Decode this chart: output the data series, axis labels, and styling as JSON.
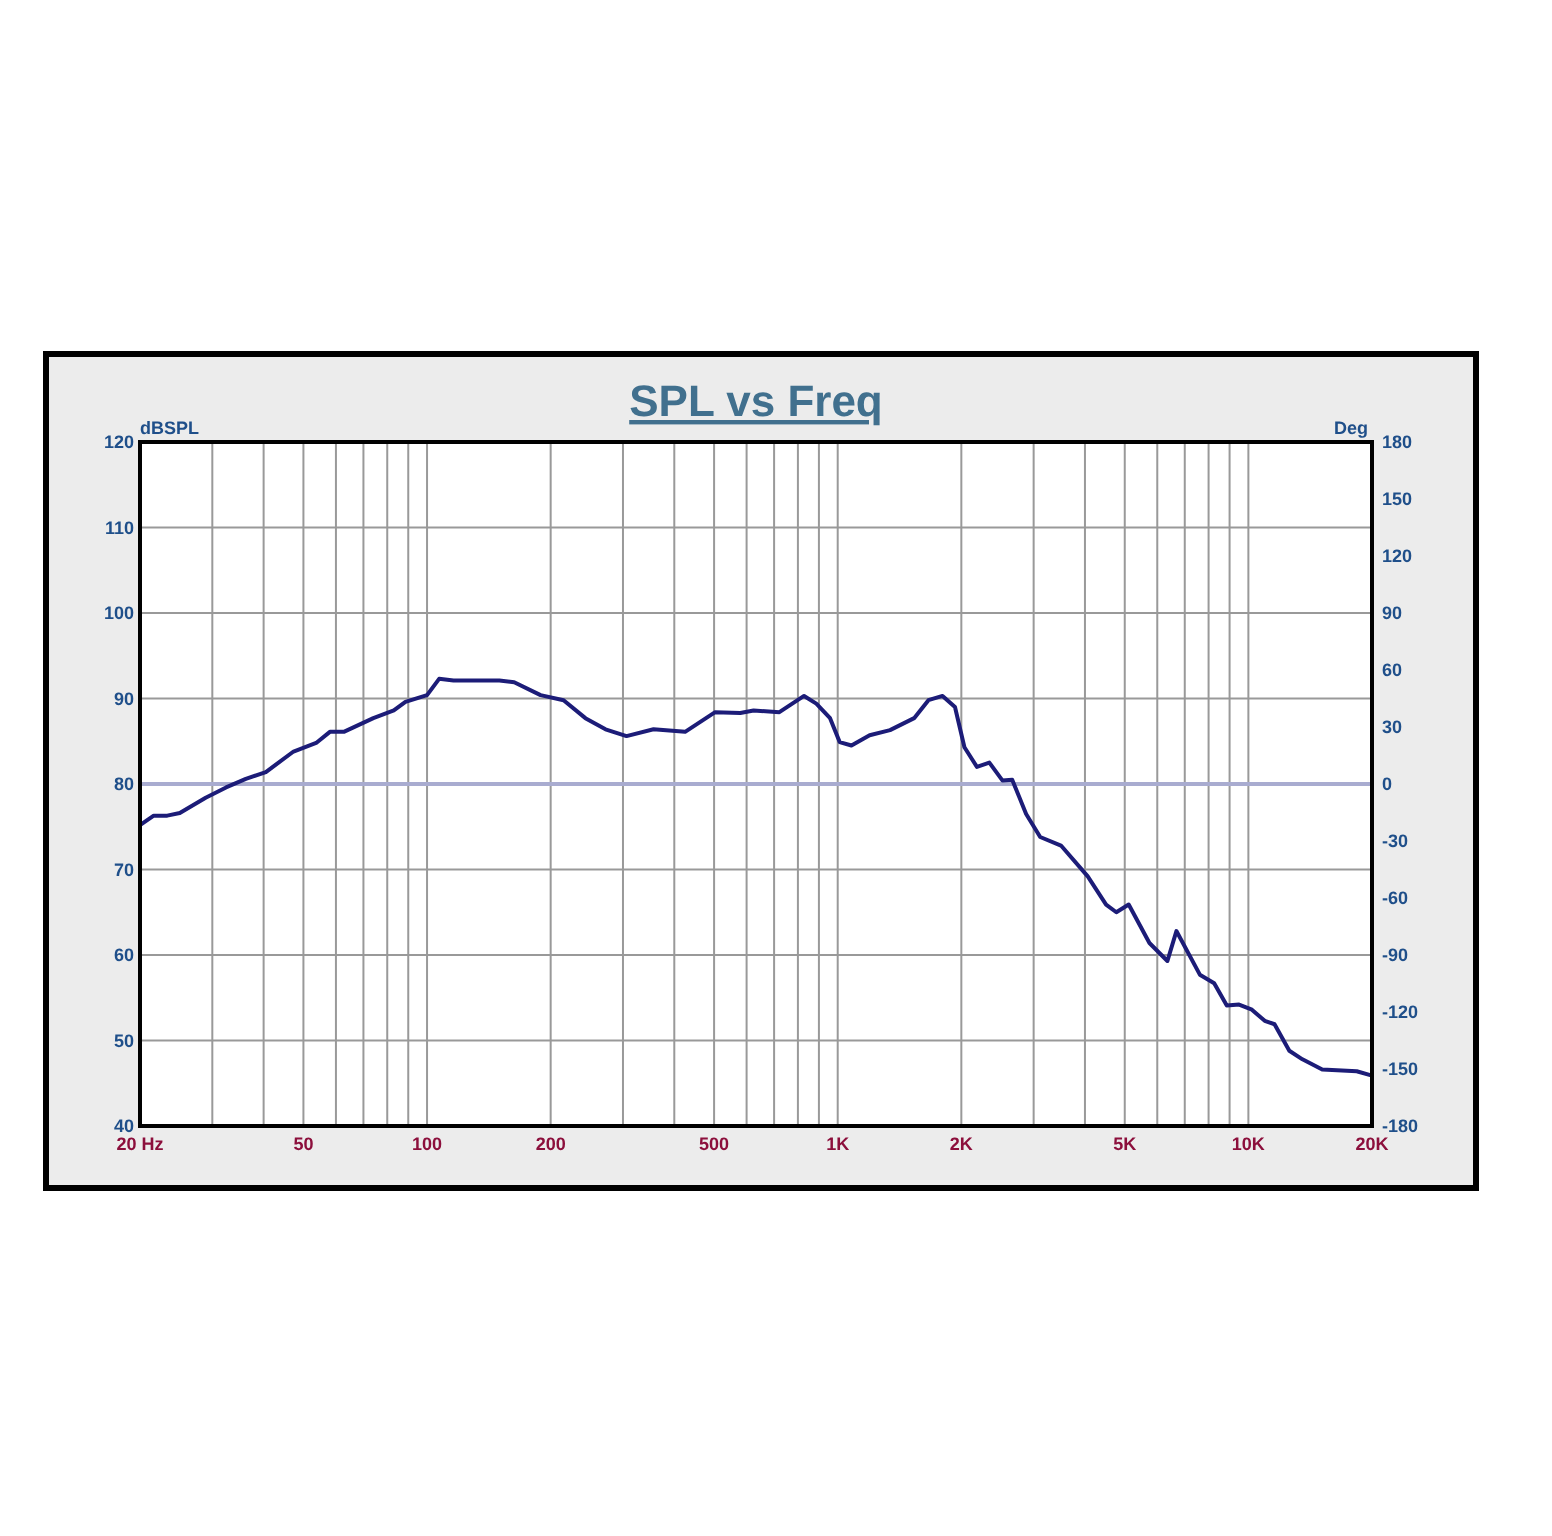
{
  "chart_data": {
    "type": "line",
    "title": "SPL vs Freq",
    "ylabel": "dBSPL",
    "y2label": "Deg",
    "log": "x",
    "grid": true,
    "marker": "none",
    "line_style": "solid",
    "xlim": [
      20,
      20000
    ],
    "xticks": [
      {
        "value": 20,
        "label": "20  Hz"
      },
      {
        "value": 30,
        "label": null
      },
      {
        "value": 40,
        "label": null
      },
      {
        "value": 50,
        "label": "50"
      },
      {
        "value": 60,
        "label": null
      },
      {
        "value": 70,
        "label": null
      },
      {
        "value": 80,
        "label": null
      },
      {
        "value": 90,
        "label": null
      },
      {
        "value": 100,
        "label": "100"
      },
      {
        "value": 200,
        "label": "200"
      },
      {
        "value": 300,
        "label": null
      },
      {
        "value": 400,
        "label": null
      },
      {
        "value": 500,
        "label": "500"
      },
      {
        "value": 600,
        "label": null
      },
      {
        "value": 700,
        "label": null
      },
      {
        "value": 800,
        "label": null
      },
      {
        "value": 900,
        "label": null
      },
      {
        "value": 1000,
        "label": "1K"
      },
      {
        "value": 2000,
        "label": "2K"
      },
      {
        "value": 3000,
        "label": null
      },
      {
        "value": 4000,
        "label": null
      },
      {
        "value": 5000,
        "label": "5K"
      },
      {
        "value": 6000,
        "label": null
      },
      {
        "value": 7000,
        "label": null
      },
      {
        "value": 8000,
        "label": null
      },
      {
        "value": 9000,
        "label": null
      },
      {
        "value": 10000,
        "label": "10K"
      },
      {
        "value": 20000,
        "label": "20K"
      }
    ],
    "ylim": [
      40,
      120
    ],
    "yticks": [
      40,
      50,
      60,
      70,
      80,
      90,
      100,
      110,
      120
    ],
    "y2lim": [
      -180,
      180
    ],
    "y2ticks": [
      -180,
      -150,
      -120,
      -90,
      -60,
      -30,
      0,
      30,
      60,
      90,
      120,
      150,
      180
    ],
    "ref_lines": [
      {
        "axis": "y2",
        "value": 0,
        "color": "#a9acd0"
      }
    ],
    "series": [
      {
        "color": "#1c1c78",
        "x": [
          20,
          21.6,
          23.3,
          25,
          28.9,
          32.4,
          36.2,
          40.5,
          47.3,
          53.7,
          58,
          62.7,
          74,
          83,
          88.6,
          100,
          107,
          116,
          150,
          163,
          189,
          215,
          243,
          272,
          306,
          356,
          425,
          503,
          579,
          624,
          721,
          828,
          887,
          958,
          1011,
          1080,
          1196,
          1341,
          1535,
          1663,
          1800,
          1930,
          2035,
          2183,
          2340,
          2520,
          2660,
          2876,
          3112,
          3497,
          4063,
          4503,
          4769,
          5112,
          5742,
          6351,
          6680,
          7618,
          8255,
          8860,
          9490,
          10200,
          10960,
          11580,
          12580,
          13540,
          15130,
          18360,
          20000
        ],
        "values": [
          75.2,
          76.3,
          76.3,
          76.6,
          78.4,
          79.6,
          80.6,
          81.4,
          83.8,
          84.8,
          86.1,
          86.1,
          87.7,
          88.6,
          89.6,
          90.4,
          92.3,
          92.1,
          92.1,
          91.9,
          90.4,
          89.8,
          87.7,
          86.4,
          85.6,
          86.4,
          86.1,
          88.4,
          88.3,
          88.6,
          88.4,
          90.3,
          89.4,
          87.7,
          84.9,
          84.5,
          85.7,
          86.3,
          87.7,
          89.8,
          90.3,
          89,
          84.3,
          82,
          82.5,
          80.4,
          80.5,
          76.5,
          73.8,
          72.8,
          69.2,
          65.9,
          65,
          65.9,
          61.4,
          59.3,
          62.8,
          57.7,
          56.7,
          54.1,
          54.2,
          53.6,
          52.3,
          51.9,
          48.8,
          47.8,
          46.6,
          46.4,
          45.9
        ]
      }
    ]
  }
}
